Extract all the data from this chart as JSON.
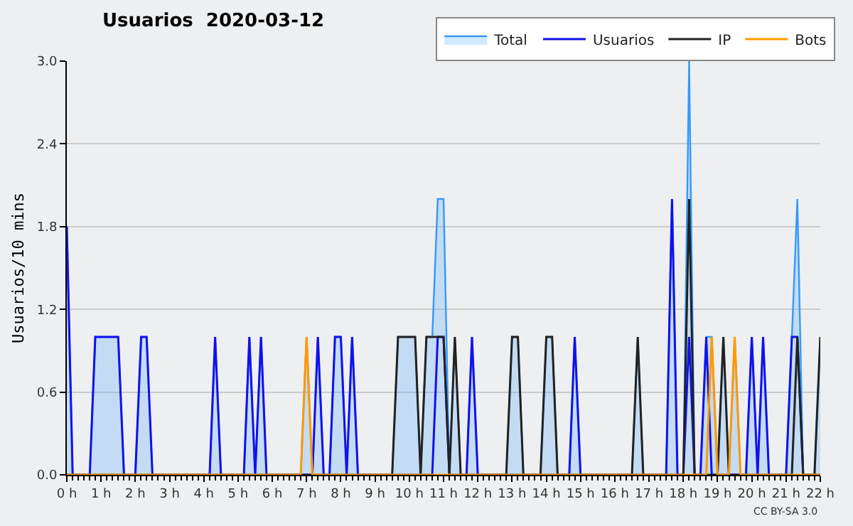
{
  "chart_data": {
    "type": "line",
    "title": "Usuarios  2020-03-12",
    "ylabel": "Usuarios/10 mins",
    "xlim": [
      0,
      22
    ],
    "xticks": [
      {
        "value": 0,
        "label": "0 h"
      },
      {
        "value": 1,
        "label": "1 h"
      },
      {
        "value": 2,
        "label": "2 h"
      },
      {
        "value": 3,
        "label": "3 h"
      },
      {
        "value": 4,
        "label": "4 h"
      },
      {
        "value": 5,
        "label": "5 h"
      },
      {
        "value": 6,
        "label": "6 h"
      },
      {
        "value": 7,
        "label": "7 h"
      },
      {
        "value": 8,
        "label": "8 h"
      },
      {
        "value": 9,
        "label": "9 h"
      },
      {
        "value": 10,
        "label": "10 h"
      },
      {
        "value": 11,
        "label": "11 h"
      },
      {
        "value": 12,
        "label": "12 h"
      },
      {
        "value": 13,
        "label": "13 h"
      },
      {
        "value": 14,
        "label": "14 h"
      },
      {
        "value": 15,
        "label": "15 h"
      },
      {
        "value": 16,
        "label": "16 h"
      },
      {
        "value": 17,
        "label": "17 h"
      },
      {
        "value": 18,
        "label": "18 h"
      },
      {
        "value": 19,
        "label": "19 h"
      },
      {
        "value": 20,
        "label": "20 h"
      },
      {
        "value": 21,
        "label": "21 h"
      },
      {
        "value": 22,
        "label": "22 h"
      }
    ],
    "ylim": [
      0,
      3
    ],
    "yticks": [
      {
        "value": 0,
        "label": "0.0"
      },
      {
        "value": 0.6,
        "label": "0.6"
      },
      {
        "value": 1.2,
        "label": "1.2"
      },
      {
        "value": 1.8,
        "label": "1.8"
      },
      {
        "value": 2.4,
        "label": "2.4"
      },
      {
        "value": 3,
        "label": "3.0"
      }
    ],
    "grid": "y",
    "legend": "top right",
    "annotations": [
      "CC BY-SA 3.0"
    ],
    "series": [
      {
        "name": "Total",
        "type": "area",
        "color": "#3399ff",
        "x": [
          0,
          0.17,
          0.67,
          0.83,
          1.5,
          1.67,
          2,
          2.17,
          2.33,
          2.5,
          4.17,
          4.33,
          4.5,
          5.17,
          5.33,
          5.5,
          5.67,
          5.83,
          6.83,
          7,
          7.17,
          7.33,
          7.5,
          7.67,
          7.83,
          8,
          8.17,
          8.33,
          8.5,
          9.5,
          9.67,
          10.17,
          10.33,
          10.5,
          10.67,
          10.83,
          11,
          11.17,
          11.33,
          11.5,
          11.67,
          11.83,
          12,
          12.83,
          13,
          13.17,
          13.33,
          13.83,
          14,
          14.17,
          14.33,
          14.67,
          14.83,
          15,
          16.5,
          16.67,
          16.83,
          17.5,
          17.67,
          17.83,
          18,
          18.17,
          18.33,
          18.5,
          18.67,
          18.83,
          19,
          19.17,
          19.33,
          19.5,
          19.67,
          19.83,
          20,
          20.17,
          20.33,
          20.5,
          21,
          21.17,
          21.33,
          21.5,
          21.83,
          22
        ],
        "values": [
          1.8,
          0,
          0,
          1,
          1,
          0,
          0,
          1,
          1,
          0,
          0,
          1,
          0,
          0,
          1,
          0,
          1,
          0,
          0,
          1,
          0,
          1,
          0,
          0,
          1,
          1,
          0,
          1,
          0,
          0,
          1,
          1,
          0,
          1,
          1,
          2,
          2,
          0,
          1,
          0,
          0,
          1,
          0,
          0,
          1,
          1,
          0,
          0,
          1,
          1,
          0,
          0,
          1,
          0,
          0,
          1,
          0,
          0,
          2,
          0,
          0,
          3,
          0,
          0,
          1,
          1,
          0,
          1,
          0,
          1,
          0,
          0,
          1,
          0,
          1,
          0,
          0,
          1,
          2,
          0,
          0,
          1
        ]
      },
      {
        "name": "Usuarios",
        "color": "#1111ee",
        "x": [
          0,
          0.17,
          0.67,
          0.83,
          1.5,
          1.67,
          2,
          2.17,
          2.33,
          2.5,
          4.17,
          4.33,
          4.5,
          5.17,
          5.33,
          5.5,
          5.67,
          5.83,
          7.17,
          7.33,
          7.5,
          7.67,
          7.83,
          8,
          8.17,
          8.33,
          8.5,
          10.67,
          10.83,
          11,
          11.17,
          11.67,
          11.83,
          12,
          14.67,
          14.83,
          15,
          17.5,
          17.67,
          17.83,
          18,
          18.17,
          18.33,
          18.5,
          18.67,
          18.83,
          19.83,
          20,
          20.17,
          20.33,
          20.5,
          21,
          21.17,
          21.33,
          21.5,
          22
        ],
        "values": [
          1.8,
          0,
          0,
          1,
          1,
          0,
          0,
          1,
          1,
          0,
          0,
          1,
          0,
          0,
          1,
          0,
          1,
          0,
          0,
          1,
          0,
          0,
          1,
          1,
          0,
          1,
          0,
          0,
          1,
          1,
          0,
          0,
          1,
          0,
          0,
          1,
          0,
          0,
          2,
          0,
          0,
          1,
          0,
          0,
          1,
          0,
          0,
          1,
          0,
          1,
          0,
          0,
          1,
          1,
          0,
          0
        ]
      },
      {
        "name": "IP",
        "color": "#222222",
        "x": [
          0,
          9.5,
          9.67,
          10.17,
          10.33,
          10.5,
          11,
          11.17,
          11.33,
          11.5,
          12.83,
          13,
          13.17,
          13.33,
          13.83,
          14,
          14.17,
          14.33,
          16.5,
          16.67,
          16.83,
          18,
          18.17,
          18.33,
          19,
          19.17,
          19.33,
          21.17,
          21.33,
          21.5,
          21.83,
          22
        ],
        "values": [
          0,
          0,
          1,
          1,
          0,
          1,
          1,
          0,
          1,
          0,
          0,
          1,
          1,
          0,
          0,
          1,
          1,
          0,
          0,
          1,
          0,
          0,
          2,
          0,
          0,
          1,
          0,
          0,
          1,
          0,
          0,
          1
        ]
      },
      {
        "name": "Bots",
        "color": "#ff9900",
        "x": [
          0,
          6.83,
          7,
          7.17,
          18.67,
          18.83,
          19,
          19.33,
          19.5,
          19.67,
          22
        ],
        "values": [
          0,
          0,
          1,
          0,
          0,
          1,
          0,
          0,
          1,
          0,
          0
        ]
      }
    ]
  }
}
